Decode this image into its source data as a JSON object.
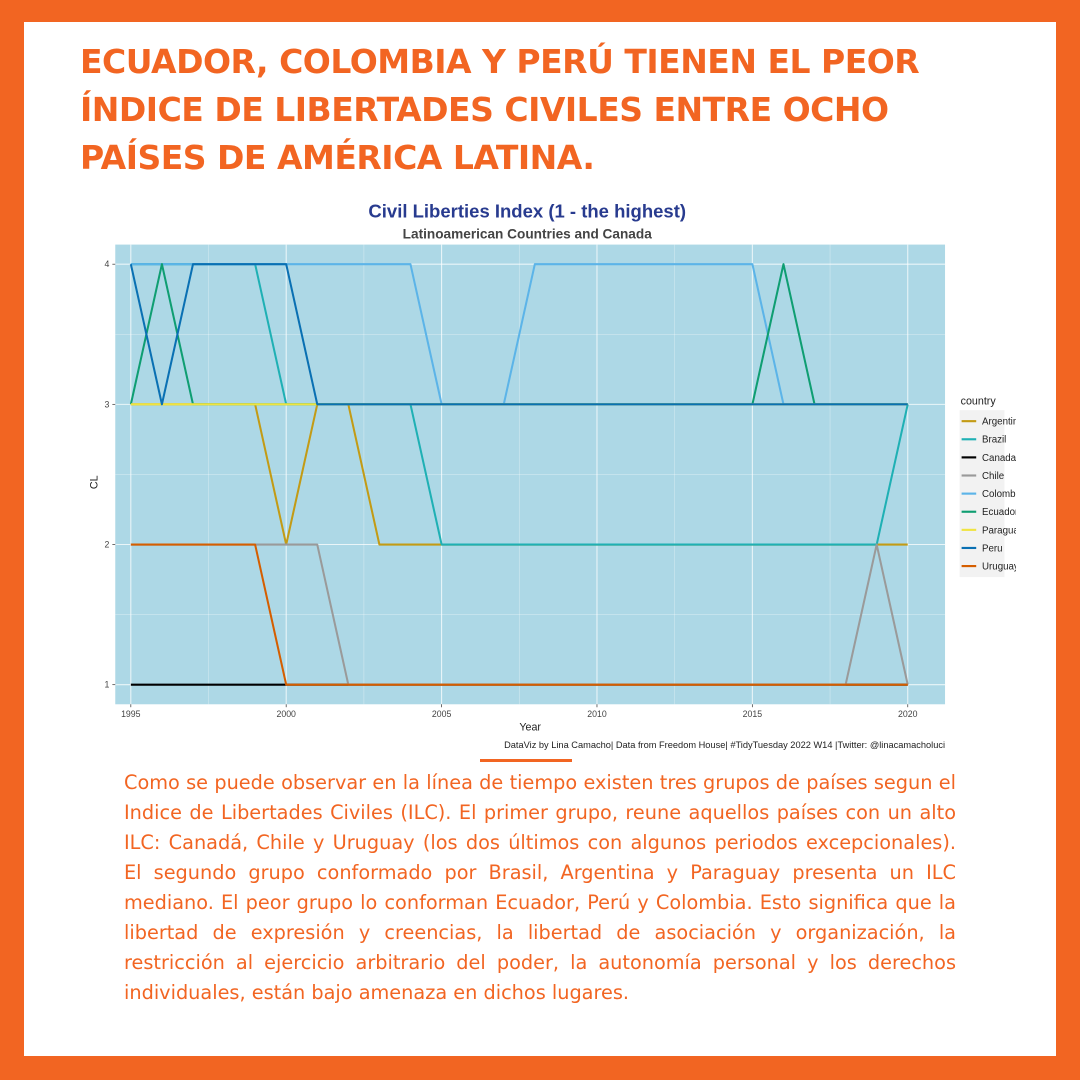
{
  "headline": "ECUADOR, COLOMBIA Y PERÚ TIENEN EL PEOR ÍNDICE DE LIBERTADES CIVILES ENTRE OCHO PAÍSES DE AMÉRICA LATINA.",
  "body_text": "Como se puede observar en la línea de tiempo existen tres grupos de países segun el Indice de Libertades Civiles (ILC). El primer grupo, reune aquellos países con un alto ILC: Canadá, Chile y Uruguay (los dos últimos con algunos periodos excepcionales). El segundo grupo conformado por Brasil, Argentina y Paraguay presenta un ILC mediano. El peor grupo lo conforman Ecuador, Perú y Colombia. Esto significa que la libertad de expresión y creencias, la libertad de asociación y organización, la restricción al ejercicio arbitrario del poder, la autonomía personal y los derechos individuales, están bajo amenaza en dichos lugares.",
  "colors": {
    "accent": "#f26522",
    "panel": "#add8e6",
    "title": "#283b8f"
  },
  "chart_data": {
    "type": "line",
    "title": "Civil Liberties Index (1 - the highest)",
    "subtitle": "Latinoamerican Countries and Canada",
    "xlabel": "Year",
    "ylabel": "CL",
    "xlim": [
      1994.5,
      2021.2
    ],
    "ylim": [
      0.86,
      4.14
    ],
    "x_ticks": [
      "1995",
      "2000",
      "2005",
      "2010",
      "2015",
      "2020"
    ],
    "y_ticks": [
      "1",
      "2",
      "3",
      "4"
    ],
    "grid": true,
    "legend_title": "country",
    "legend_position": "right",
    "caption": "DataViz by Lina Camacho| Data from Freedom House| #TidyTuesday 2022 W14 |Twitter: @linacamacholuci",
    "x": [
      1995,
      1996,
      1997,
      1998,
      1999,
      2000,
      2001,
      2002,
      2003,
      2004,
      2005,
      2006,
      2007,
      2008,
      2009,
      2010,
      2011,
      2012,
      2013,
      2014,
      2015,
      2016,
      2017,
      2018,
      2019,
      2020
    ],
    "series": [
      {
        "name": "Argentina",
        "color": "#c39b15",
        "values": [
          3,
          3,
          3,
          3,
          3,
          2,
          3,
          3,
          2,
          2,
          2,
          2,
          2,
          2,
          2,
          2,
          2,
          2,
          2,
          2,
          2,
          2,
          2,
          2,
          2,
          2
        ]
      },
      {
        "name": "Brazil",
        "color": "#1fb0b4",
        "values": [
          4,
          4,
          4,
          4,
          4,
          3,
          3,
          3,
          3,
          3,
          2,
          2,
          2,
          2,
          2,
          2,
          2,
          2,
          2,
          2,
          2,
          2,
          2,
          2,
          2,
          3
        ]
      },
      {
        "name": "Canada",
        "color": "#000000",
        "values": [
          1,
          1,
          1,
          1,
          1,
          1,
          1,
          1,
          1,
          1,
          1,
          1,
          1,
          1,
          1,
          1,
          1,
          1,
          1,
          1,
          1,
          1,
          1,
          1,
          1,
          1
        ]
      },
      {
        "name": "Chile",
        "color": "#9a9a9a",
        "values": [
          2,
          2,
          2,
          2,
          2,
          2,
          2,
          1,
          1,
          1,
          1,
          1,
          1,
          1,
          1,
          1,
          1,
          1,
          1,
          1,
          1,
          1,
          1,
          1,
          2,
          1
        ]
      },
      {
        "name": "Colombia",
        "color": "#5cb4e8",
        "values": [
          4,
          4,
          4,
          4,
          4,
          4,
          4,
          4,
          4,
          4,
          3,
          3,
          3,
          4,
          4,
          4,
          4,
          4,
          4,
          4,
          4,
          3,
          3,
          3,
          3,
          3
        ]
      },
      {
        "name": "Ecuador",
        "color": "#0f9e72",
        "values": [
          3,
          4,
          3,
          3,
          3,
          3,
          3,
          3,
          3,
          3,
          3,
          3,
          3,
          3,
          3,
          3,
          3,
          3,
          3,
          3,
          3,
          4,
          3,
          3,
          3,
          3
        ]
      },
      {
        "name": "Paraguay",
        "color": "#f0e442",
        "values": [
          3,
          3,
          3,
          3,
          3,
          3,
          3,
          3,
          3,
          3,
          3,
          3,
          3,
          3,
          3,
          3,
          3,
          3,
          3,
          3,
          3,
          3,
          3,
          3,
          3,
          3
        ]
      },
      {
        "name": "Peru",
        "color": "#0a70b3",
        "values": [
          4,
          3,
          4,
          4,
          4,
          4,
          3,
          3,
          3,
          3,
          3,
          3,
          3,
          3,
          3,
          3,
          3,
          3,
          3,
          3,
          3,
          3,
          3,
          3,
          3,
          3
        ]
      },
      {
        "name": "Uruguay",
        "color": "#d55e00",
        "values": [
          2,
          2,
          2,
          2,
          2,
          1,
          1,
          1,
          1,
          1,
          1,
          1,
          1,
          1,
          1,
          1,
          1,
          1,
          1,
          1,
          1,
          1,
          1,
          1,
          1,
          1
        ]
      }
    ]
  }
}
